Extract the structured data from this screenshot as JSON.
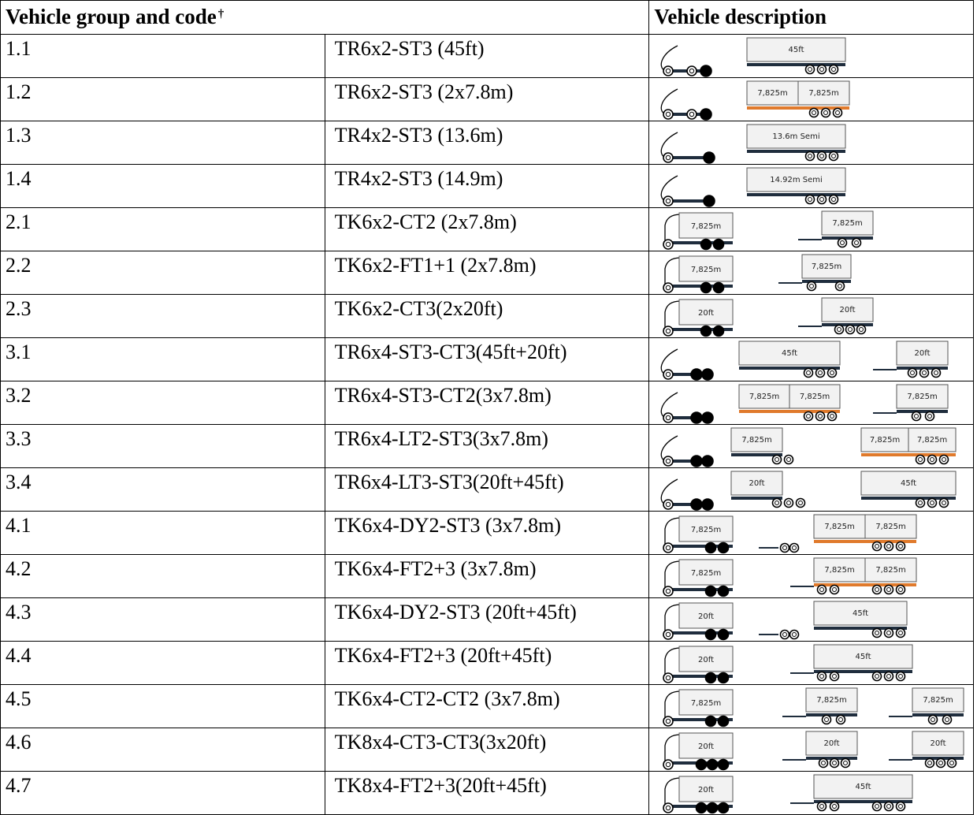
{
  "table": {
    "headers": {
      "group": "Vehicle group and code",
      "dagger": "†",
      "description": "Vehicle description"
    },
    "rows": [
      {
        "num": "1.1",
        "code": "TR6x2-ST3 (45ft)",
        "labels": [
          "45ft"
        ]
      },
      {
        "num": "1.2",
        "code": "TR6x2-ST3 (2x7.8m)",
        "labels": [
          "7,825m",
          "7,825m"
        ]
      },
      {
        "num": "1.3",
        "code": "TR4x2-ST3 (13.6m)",
        "labels": [
          "13.6m Semi"
        ]
      },
      {
        "num": "1.4",
        "code": "TR4x2-ST3 (14.9m)",
        "labels": [
          "14.92m Semi"
        ]
      },
      {
        "num": "2.1",
        "code": "TK6x2-CT2 (2x7.8m)",
        "labels": [
          "7,825m",
          "7,825m"
        ]
      },
      {
        "num": "2.2",
        "code": "TK6x2-FT1+1 (2x7.8m)",
        "labels": [
          "7,825m",
          "7,825m"
        ]
      },
      {
        "num": "2.3",
        "code": "TK6x2-CT3(2x20ft)",
        "labels": [
          "20ft",
          "20ft"
        ]
      },
      {
        "num": "3.1",
        "code": "TR6x4-ST3-CT3(45ft+20ft)",
        "labels": [
          "45ft",
          "20ft"
        ]
      },
      {
        "num": "3.2",
        "code": "TR6x4-ST3-CT2(3x7.8m)",
        "labels": [
          "7,825m",
          "7,825m",
          "7,825m"
        ]
      },
      {
        "num": "3.3",
        "code": "TR6x4-LT2-ST3(3x7.8m)",
        "labels": [
          "7,825m",
          "7,825m",
          "7,825m"
        ]
      },
      {
        "num": "3.4",
        "code": "TR6x4-LT3-ST3(20ft+45ft)",
        "labels": [
          "20ft",
          "45ft"
        ]
      },
      {
        "num": "4.1",
        "code": "TK6x4-DY2-ST3 (3x7.8m)",
        "labels": [
          "7,825m",
          "7,825m",
          "7,825m"
        ]
      },
      {
        "num": "4.2",
        "code": "TK6x4-FT2+3 (3x7.8m)",
        "labels": [
          "7,825m",
          "7,825m",
          "7,825m"
        ]
      },
      {
        "num": "4.3",
        "code": "TK6x4-DY2-ST3 (20ft+45ft)",
        "labels": [
          "20ft",
          "45ft"
        ]
      },
      {
        "num": "4.4",
        "code": "TK6x4-FT2+3 (20ft+45ft)",
        "labels": [
          "20ft",
          "45ft"
        ]
      },
      {
        "num": "4.5",
        "code": "TK6x4-CT2-CT2 (3x7.8m)",
        "labels": [
          "7,825m",
          "7,825m",
          "7,825m"
        ]
      },
      {
        "num": "4.6",
        "code": "TK8x4-CT3-CT3(3x20ft)",
        "labels": [
          "20ft",
          "20ft",
          "20ft"
        ]
      },
      {
        "num": "4.7",
        "code": "TK8x4-FT2+3(20ft+45ft)",
        "labels": [
          "20ft",
          "45ft"
        ]
      }
    ]
  },
  "colors": {
    "box_fill": "#f2f2f2",
    "chassis": "#1f2d3d",
    "wheel_dark": "#000000",
    "flatbed": "#e07a2c"
  }
}
